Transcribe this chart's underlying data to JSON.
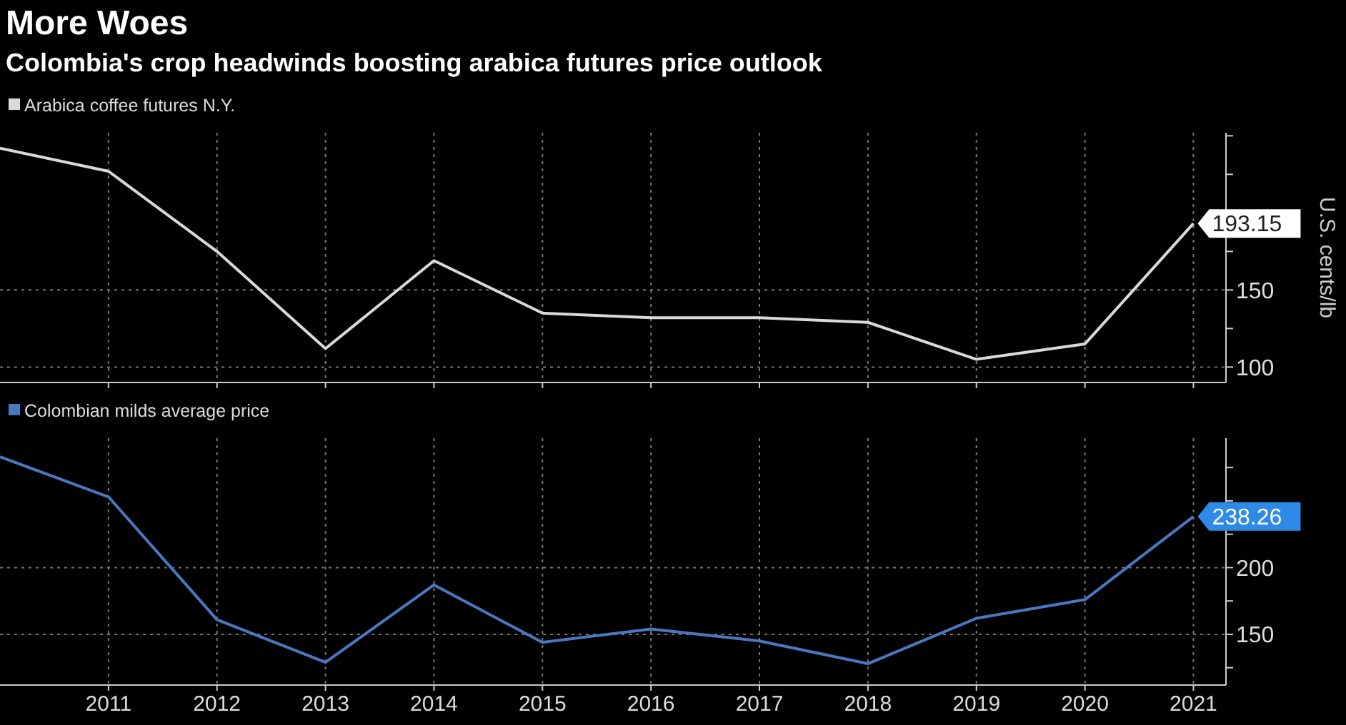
{
  "chart_data": [
    {
      "type": "line",
      "title": "More Woes",
      "subtitle": "Colombia's crop headwinds boosting arabica futures price outlook",
      "ylabel": "U.S. cents/lb",
      "x": [
        2010,
        2011,
        2012,
        2013,
        2014,
        2015,
        2016,
        2017,
        2018,
        2019,
        2020,
        2021
      ],
      "series": [
        {
          "name": "Arabica coffee futures N.Y.",
          "color": "#d9d9d9",
          "values": [
            242,
            227,
            175,
            112,
            169,
            135,
            132,
            132,
            129,
            105,
            115,
            193.15
          ],
          "value_labels": [
            null,
            null,
            null,
            null,
            null,
            null,
            null,
            null,
            null,
            null,
            null,
            "193.15"
          ]
        }
      ],
      "xlim": [
        2010,
        2021.3
      ],
      "xticks": [
        2011,
        2012,
        2013,
        2014,
        2015,
        2016,
        2017,
        2018,
        2019,
        2020,
        2021
      ],
      "ylim": [
        90,
        252
      ],
      "yticks": [
        {
          "value": 100,
          "label": "100"
        },
        {
          "value": 125,
          "label": null
        },
        {
          "value": 150,
          "label": "150"
        },
        {
          "value": 175,
          "label": null
        },
        {
          "value": 200,
          "label": null
        },
        {
          "value": 225,
          "label": null
        },
        {
          "value": 250,
          "label": null
        }
      ],
      "tick_labels": "y",
      "grid": true,
      "legend": "top left",
      "marker": "none",
      "line_style": "solid"
    },
    {
      "type": "line",
      "x": [
        2010,
        2011,
        2012,
        2013,
        2014,
        2015,
        2016,
        2017,
        2018,
        2019,
        2020,
        2021
      ],
      "series": [
        {
          "name": "Colombian milds average price",
          "color": "#4a78c0",
          "values": [
            283,
            253,
            161,
            129,
            187,
            144,
            154,
            145,
            128,
            162,
            176,
            238.26
          ],
          "value_labels": [
            null,
            null,
            null,
            null,
            null,
            null,
            null,
            null,
            null,
            null,
            null,
            "238.26"
          ]
        }
      ],
      "xlim": [
        2010,
        2021.3
      ],
      "xticks": [
        2011,
        2012,
        2013,
        2014,
        2015,
        2016,
        2017,
        2018,
        2019,
        2020,
        2021
      ],
      "ylim": [
        112,
        297
      ],
      "yticks": [
        {
          "value": 125,
          "label": null
        },
        {
          "value": 150,
          "label": "150"
        },
        {
          "value": 175,
          "label": null
        },
        {
          "value": 200,
          "label": "200"
        },
        {
          "value": 225,
          "label": null
        },
        {
          "value": 250,
          "label": null
        },
        {
          "value": 275,
          "label": null
        }
      ],
      "grid": true,
      "legend": "top left",
      "marker": "none",
      "line_style": "solid"
    }
  ]
}
